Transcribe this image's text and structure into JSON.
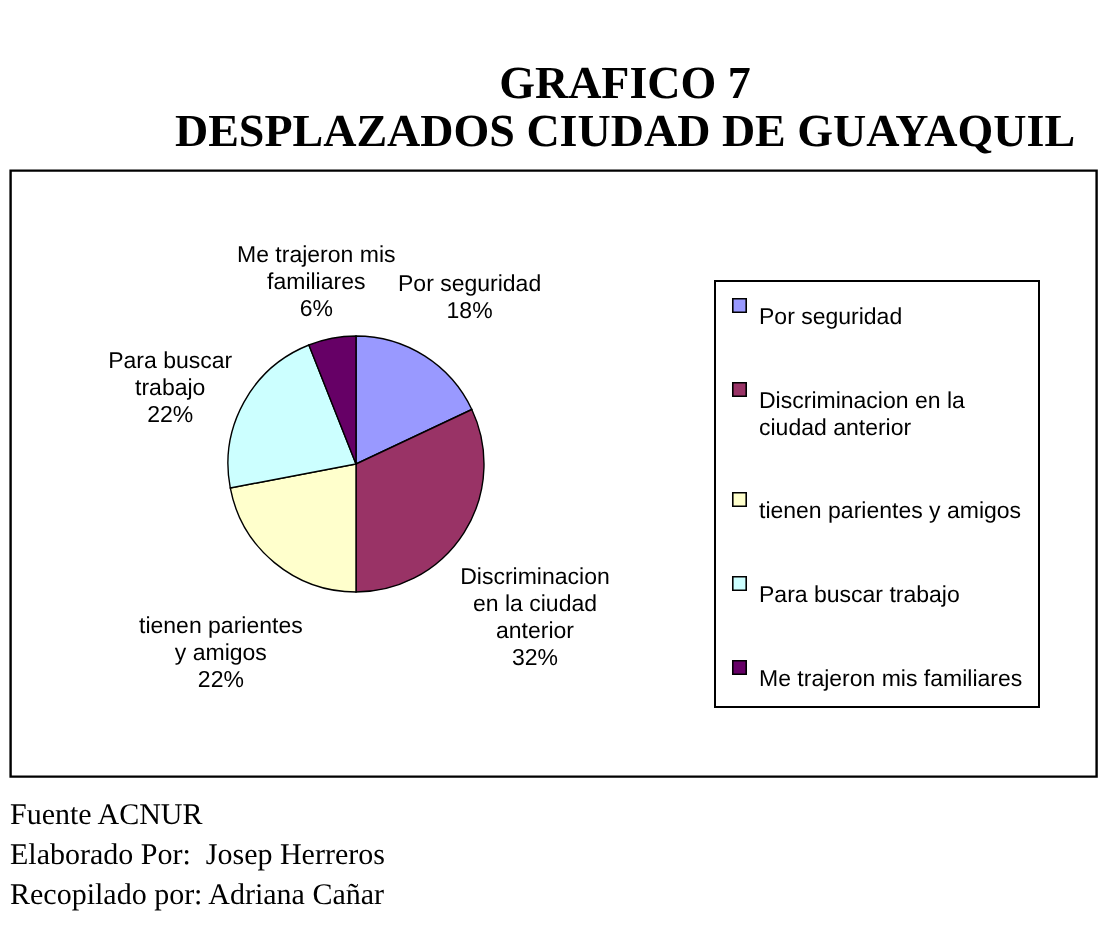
{
  "chart_data": {
    "type": "pie",
    "title": "GRAFICO 7",
    "subtitle": "DESPLAZADOS CIUDAD DE GUAYAQUIL",
    "categories": [
      "Por seguridad",
      "Discriminacion en la ciudad anterior",
      "tienen parientes y amigos",
      "Para buscar trabajo",
      "Me trajeron mis familiares"
    ],
    "values": [
      18,
      32,
      22,
      22,
      6
    ],
    "value_labels": [
      "18%",
      "32%",
      "22%",
      "22%",
      "6%"
    ],
    "colors": [
      "#9999ff",
      "#993366",
      "#ffffcc",
      "#ccffff",
      "#660066"
    ],
    "legend": "right",
    "annotations": [
      "Fuente ACNUR",
      "Elaborado Por:  Josep Herreros",
      "Recopilado por: Adriana Cañar"
    ]
  }
}
